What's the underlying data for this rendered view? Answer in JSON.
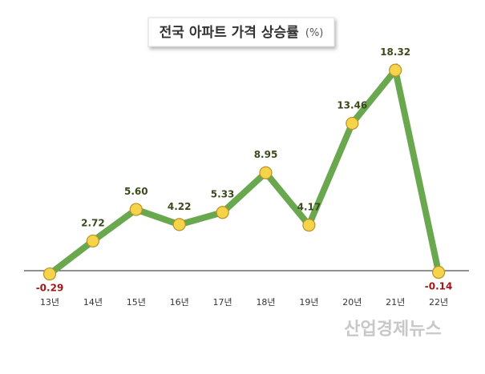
{
  "chart_data": {
    "type": "line",
    "title": "전국 아파트 가격 상승률",
    "unit": "(%)",
    "categories": [
      "13년",
      "14년",
      "15년",
      "16년",
      "17년",
      "18년",
      "19년",
      "20년",
      "21년",
      "22년"
    ],
    "values": [
      -0.29,
      2.72,
      5.6,
      4.22,
      5.33,
      8.95,
      4.17,
      13.46,
      18.32,
      -0.14
    ],
    "value_labels": [
      "-0.29",
      "2.72",
      "5.60",
      "4.22",
      "5.33",
      "8.95",
      "4.17",
      "13.46",
      "18.32",
      "-0.14"
    ],
    "color": "#6aa84f",
    "marker_color": "#f6d44a",
    "ylim": [
      -1.6,
      21.8
    ],
    "watermark": "산업경제뉴스"
  }
}
